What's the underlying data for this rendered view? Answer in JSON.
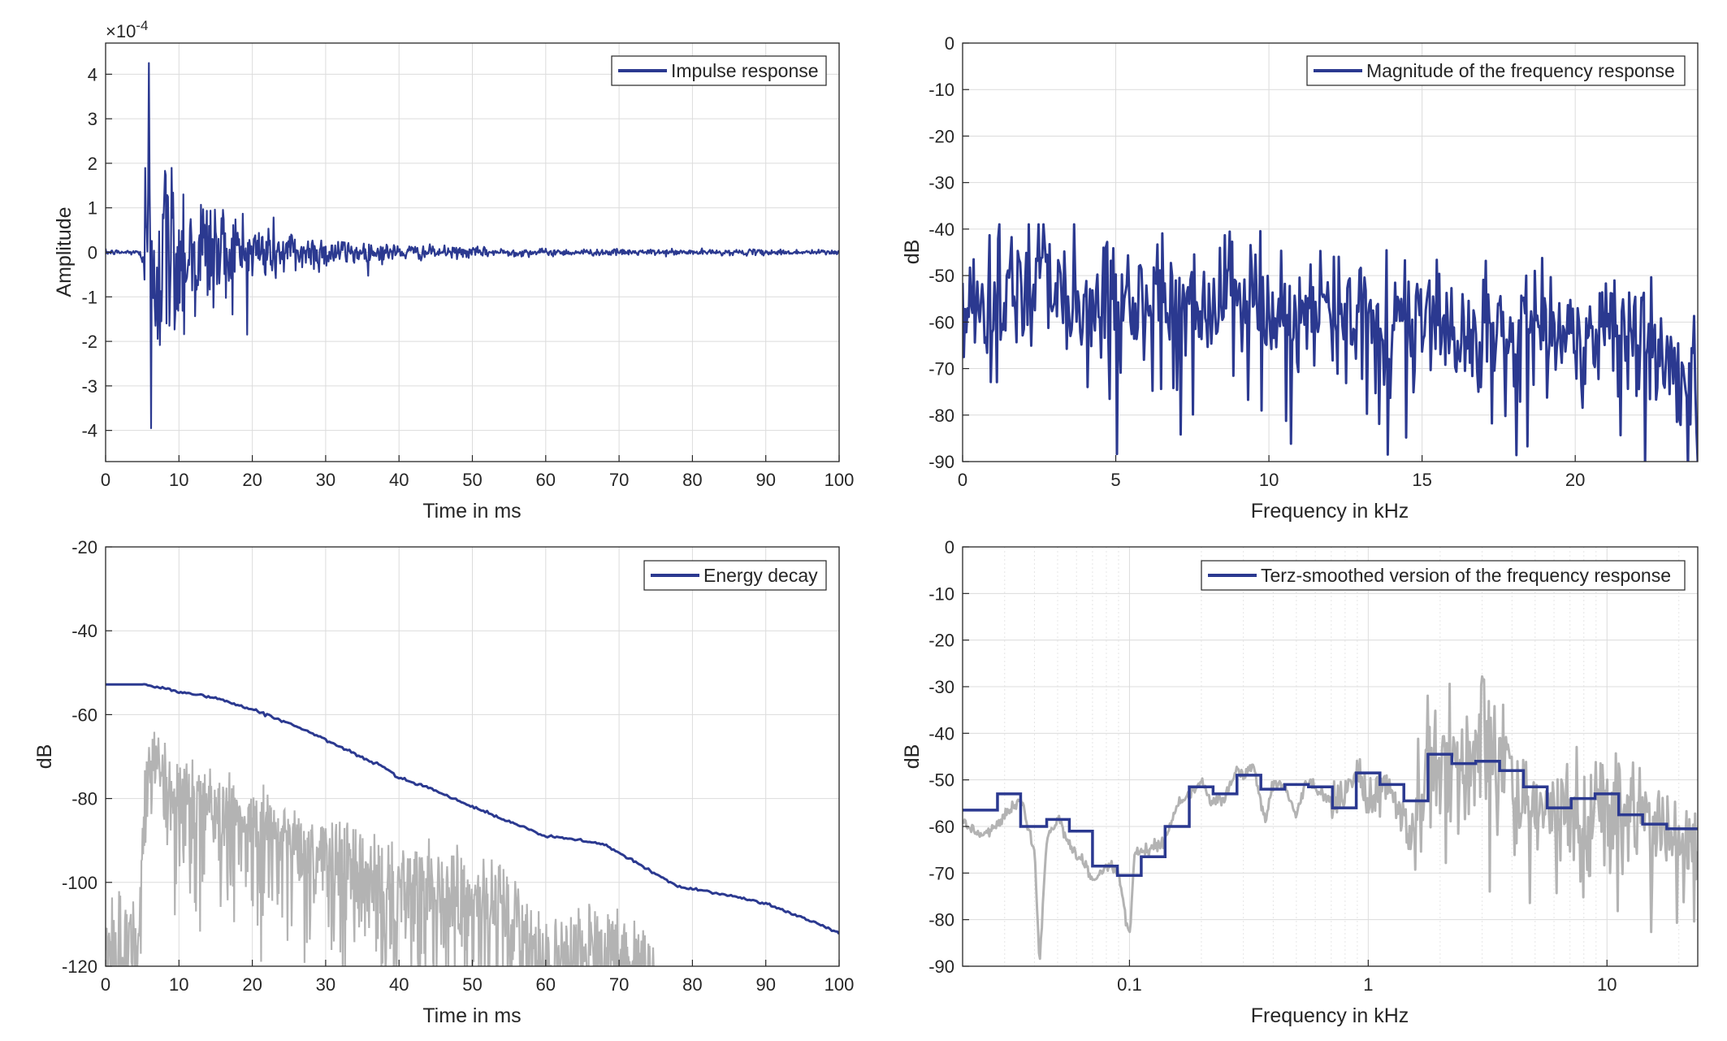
{
  "colors": {
    "series": "#2b3990",
    "raw": "#b3b3b3",
    "grid": "#dcdcdc",
    "axis": "#262626",
    "background": "#ffffff"
  },
  "chart_data": [
    {
      "id": "impulse",
      "type": "line",
      "xlabel": "Time in ms",
      "ylabel": "Amplitude",
      "exponent_label": {
        "base": "×10",
        "power": "-4"
      },
      "xlim": [
        0,
        100
      ],
      "ylim": [
        -4.7,
        4.7
      ],
      "xticks": [
        0,
        10,
        20,
        30,
        40,
        50,
        60,
        70,
        80,
        90,
        100
      ],
      "yticks": [
        -4,
        -3,
        -2,
        -1,
        0,
        1,
        2,
        3,
        4
      ],
      "grid": true,
      "legend_position": "top-right",
      "series": [
        {
          "name": "Impulse response",
          "color": "#2b3990",
          "signal": {
            "kind": "decaying_noise",
            "start": 4.7,
            "end": 100,
            "step": 0.1,
            "peak": 4.25,
            "peak_at": 5.9,
            "min": -3.95,
            "min_at": 6.2,
            "decay_ms": 11,
            "initial": 1.5,
            "noise_floor": 0.03
          }
        }
      ]
    },
    {
      "id": "magnitude",
      "type": "line",
      "xlabel": "Frequency in kHz",
      "ylabel": "dB",
      "xlim": [
        0,
        24
      ],
      "ylim": [
        -90,
        0
      ],
      "xticks": [
        0,
        5,
        10,
        15,
        20
      ],
      "yticks": [
        0,
        -10,
        -20,
        -30,
        -40,
        -50,
        -60,
        -70,
        -80,
        -90
      ],
      "grid": true,
      "legend_position": "top-right",
      "series": [
        {
          "name": "Magnitude of the frequency response",
          "color": "#2b3990",
          "envelope_db": [
            [
              0,
              -58
            ],
            [
              2,
              -52
            ],
            [
              3,
              -52
            ],
            [
              6,
              -56
            ],
            [
              9,
              -58
            ],
            [
              12,
              -58
            ],
            [
              18,
              -62
            ],
            [
              21,
              -61
            ],
            [
              23,
              -66
            ],
            [
              24,
              -76
            ]
          ],
          "signal": {
            "kind": "spiky_spectrum",
            "step": 0.04,
            "spread_db": 7,
            "dip_prob": 0.12,
            "dip_depth_db": 25,
            "peak_max_db": -39
          }
        }
      ]
    },
    {
      "id": "energy",
      "type": "line",
      "xlabel": "Time in ms",
      "ylabel": "dB",
      "xlim": [
        0,
        100
      ],
      "ylim": [
        -120,
        -20
      ],
      "xticks": [
        0,
        10,
        20,
        30,
        40,
        50,
        60,
        70,
        80,
        90,
        100
      ],
      "yticks": [
        -20,
        -40,
        -60,
        -80,
        -100,
        -120
      ],
      "grid": true,
      "legend_position": "top-right",
      "series": [
        {
          "name": "Energy decay",
          "color": "#2b3990",
          "points": [
            [
              0,
              -52.8
            ],
            [
              5.5,
              -52.8
            ],
            [
              10,
              -54.5
            ],
            [
              15,
              -56
            ],
            [
              20,
              -58.8
            ],
            [
              25,
              -62
            ],
            [
              30,
              -66
            ],
            [
              35,
              -70.3
            ],
            [
              38,
              -72.5
            ],
            [
              40,
              -75
            ],
            [
              45,
              -78
            ],
            [
              50,
              -82
            ],
            [
              55,
              -85.5
            ],
            [
              60,
              -89
            ],
            [
              65,
              -90
            ],
            [
              68,
              -91
            ],
            [
              71,
              -94
            ],
            [
              75,
              -98
            ],
            [
              78,
              -101
            ],
            [
              82,
              -102
            ],
            [
              90,
              -105
            ],
            [
              95,
              -108.5
            ],
            [
              100,
              -112
            ]
          ]
        }
      ],
      "background_signal": {
        "color": "#b3b3b3",
        "kind": "log_squared_ir",
        "start": 0,
        "end": 75,
        "step": 0.08,
        "envelope_db": [
          [
            0,
            -112
          ],
          [
            4.5,
            -112
          ],
          [
            5.5,
            -70
          ],
          [
            15,
            -80
          ],
          [
            25,
            -88
          ],
          [
            40,
            -98
          ],
          [
            55,
            -104
          ],
          [
            60,
            -117
          ],
          [
            65,
            -113
          ],
          [
            72,
            -114
          ],
          [
            75,
            -120
          ]
        ]
      }
    },
    {
      "id": "terz",
      "type": "line",
      "xlabel": "Frequency in kHz",
      "ylabel": "dB",
      "xscale": "log",
      "xlim": [
        0.02,
        24
      ],
      "ylim": [
        -90,
        0
      ],
      "xticks": [
        0.1,
        1,
        10
      ],
      "xtick_labels": [
        "0.1",
        "1",
        "10"
      ],
      "yticks": [
        0,
        -10,
        -20,
        -30,
        -40,
        -50,
        -60,
        -70,
        -80,
        -90
      ],
      "grid": true,
      "legend_position": "top-right",
      "series": [
        {
          "name": "Terz-smoothed version of the frequency response",
          "color": "#2b3990",
          "step_edges_khz": [
            0.02,
            0.028,
            0.035,
            0.045,
            0.056,
            0.07,
            0.089,
            0.112,
            0.141,
            0.178,
            0.224,
            0.282,
            0.355,
            0.447,
            0.562,
            0.708,
            0.891,
            1.12,
            1.41,
            1.78,
            2.24,
            2.82,
            3.55,
            4.47,
            5.62,
            7.08,
            8.91,
            11.2,
            14.1,
            17.8,
            24
          ],
          "step_values_db": [
            -56.5,
            -53,
            -60,
            -58.5,
            -61,
            -68.5,
            -70.5,
            -66.5,
            -60,
            -51.5,
            -53,
            -49,
            -52,
            -51,
            -51.5,
            -56,
            -48.5,
            -51,
            -54.5,
            -44.5,
            -46.5,
            -46,
            -48,
            -51.5,
            -56,
            -54,
            -53,
            -57.5,
            -59.5,
            -60.5
          ]
        }
      ],
      "background_signal": {
        "color": "#b3b3b3",
        "kind": "log_spectrum",
        "anchors_db": [
          [
            0.02,
            -59
          ],
          [
            0.024,
            -62
          ],
          [
            0.03,
            -58
          ],
          [
            0.035,
            -54
          ],
          [
            0.04,
            -65
          ],
          [
            0.042,
            -90
          ],
          [
            0.045,
            -63
          ],
          [
            0.05,
            -58
          ],
          [
            0.056,
            -64
          ],
          [
            0.065,
            -68
          ],
          [
            0.07,
            -72
          ],
          [
            0.08,
            -68
          ],
          [
            0.09,
            -70
          ],
          [
            0.1,
            -84
          ],
          [
            0.105,
            -66
          ],
          [
            0.12,
            -65
          ],
          [
            0.14,
            -63
          ],
          [
            0.16,
            -55
          ],
          [
            0.18,
            -53
          ],
          [
            0.2,
            -50
          ],
          [
            0.22,
            -55
          ],
          [
            0.25,
            -54
          ],
          [
            0.28,
            -48
          ],
          [
            0.3,
            -49
          ],
          [
            0.33,
            -47
          ],
          [
            0.37,
            -59
          ],
          [
            0.4,
            -51
          ],
          [
            0.45,
            -51
          ],
          [
            0.5,
            -58
          ],
          [
            0.55,
            -50
          ],
          [
            0.65,
            -53
          ],
          [
            0.75,
            -56
          ],
          [
            0.9,
            -48
          ],
          [
            1.0,
            -55
          ],
          [
            1.2,
            -50
          ],
          [
            1.5,
            -62
          ],
          [
            1.8,
            -42
          ],
          [
            2.0,
            -45
          ],
          [
            2.5,
            -49
          ],
          [
            3.0,
            -40
          ],
          [
            3.5,
            -49
          ],
          [
            4.0,
            -50
          ],
          [
            5.0,
            -60
          ],
          [
            6.0,
            -53
          ],
          [
            8.0,
            -58
          ],
          [
            10.0,
            -55
          ],
          [
            13.0,
            -57
          ],
          [
            17.0,
            -63
          ],
          [
            24.0,
            -65
          ]
        ],
        "start_log_step": 0.004
      }
    }
  ]
}
